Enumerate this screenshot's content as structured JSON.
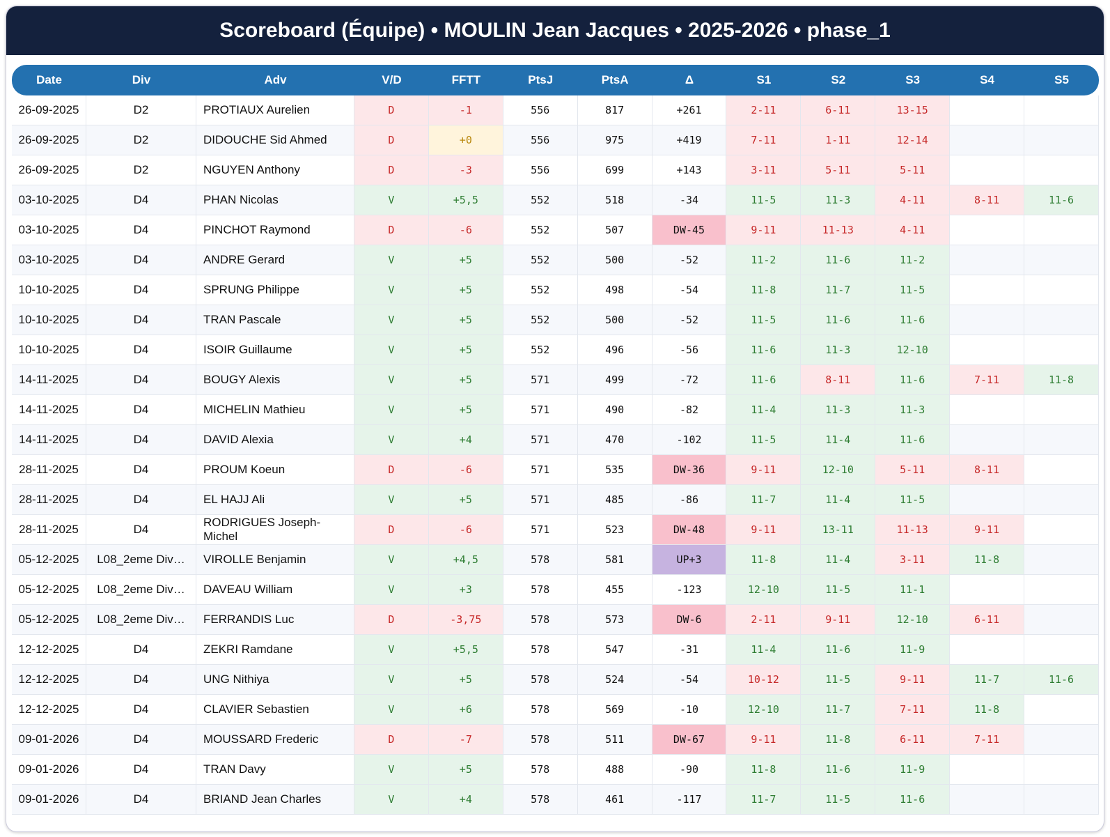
{
  "header": {
    "title": "Scoreboard (Équipe) • MOULIN Jean Jacques • 2025-2026 • phase_1"
  },
  "table": {
    "columns": [
      "Date",
      "Div",
      "Adv",
      "V/D",
      "FFTT",
      "PtsJ",
      "PtsA",
      "Δ",
      "S1",
      "S2",
      "S3",
      "S4",
      "S5"
    ],
    "rows": [
      [
        "26-09-2025",
        "D2",
        "PROTIAUX Aurelien",
        "D",
        "-1",
        556,
        817,
        "+261",
        "2-11",
        "6-11",
        "13-15",
        null,
        null
      ],
      [
        "26-09-2025",
        "D2",
        "DIDOUCHE Sid Ahmed",
        "D",
        "+0",
        556,
        975,
        "+419",
        "7-11",
        "1-11",
        "12-14",
        null,
        null
      ],
      [
        "26-09-2025",
        "D2",
        "NGUYEN Anthony",
        "D",
        "-3",
        556,
        699,
        "+143",
        "3-11",
        "5-11",
        "5-11",
        null,
        null
      ],
      [
        "03-10-2025",
        "D4",
        "PHAN Nicolas",
        "V",
        "+5,5",
        552,
        518,
        "-34",
        "11-5",
        "11-3",
        "4-11",
        "8-11",
        "11-6"
      ],
      [
        "03-10-2025",
        "D4",
        "PINCHOT Raymond",
        "D",
        "-6",
        552,
        507,
        "DW-45",
        "9-11",
        "11-13",
        "4-11",
        null,
        null
      ],
      [
        "03-10-2025",
        "D4",
        "ANDRE Gerard",
        "V",
        "+5",
        552,
        500,
        "-52",
        "11-2",
        "11-6",
        "11-2",
        null,
        null
      ],
      [
        "10-10-2025",
        "D4",
        "SPRUNG Philippe",
        "V",
        "+5",
        552,
        498,
        "-54",
        "11-8",
        "11-7",
        "11-5",
        null,
        null
      ],
      [
        "10-10-2025",
        "D4",
        "TRAN Pascale",
        "V",
        "+5",
        552,
        500,
        "-52",
        "11-5",
        "11-6",
        "11-6",
        null,
        null
      ],
      [
        "10-10-2025",
        "D4",
        "ISOIR Guillaume",
        "V",
        "+5",
        552,
        496,
        "-56",
        "11-6",
        "11-3",
        "12-10",
        null,
        null
      ],
      [
        "14-11-2025",
        "D4",
        "BOUGY Alexis",
        "V",
        "+5",
        571,
        499,
        "-72",
        "11-6",
        "8-11",
        "11-6",
        "7-11",
        "11-8"
      ],
      [
        "14-11-2025",
        "D4",
        "MICHELIN Mathieu",
        "V",
        "+5",
        571,
        490,
        "-82",
        "11-4",
        "11-3",
        "11-3",
        null,
        null
      ],
      [
        "14-11-2025",
        "D4",
        "DAVID Alexia",
        "V",
        "+4",
        571,
        470,
        "-102",
        "11-5",
        "11-4",
        "11-6",
        null,
        null
      ],
      [
        "28-11-2025",
        "D4",
        "PROUM Koeun",
        "D",
        "-6",
        571,
        535,
        "DW-36",
        "9-11",
        "12-10",
        "5-11",
        "8-11",
        null
      ],
      [
        "28-11-2025",
        "D4",
        "EL HAJJ Ali",
        "V",
        "+5",
        571,
        485,
        "-86",
        "11-7",
        "11-4",
        "11-5",
        null,
        null
      ],
      [
        "28-11-2025",
        "D4",
        "RODRIGUES Joseph-Michel",
        "D",
        "-6",
        571,
        523,
        "DW-48",
        "9-11",
        "13-11",
        "11-13",
        "9-11",
        null
      ],
      [
        "05-12-2025",
        "L08_2eme Div…",
        "VIROLLE Benjamin",
        "V",
        "+4,5",
        578,
        581,
        "UP+3",
        "11-8",
        "11-4",
        "3-11",
        "11-8",
        null
      ],
      [
        "05-12-2025",
        "L08_2eme Div…",
        "DAVEAU William",
        "V",
        "+3",
        578,
        455,
        "-123",
        "12-10",
        "11-5",
        "11-1",
        null,
        null
      ],
      [
        "05-12-2025",
        "L08_2eme Div…",
        "FERRANDIS Luc",
        "D",
        "-3,75",
        578,
        573,
        "DW-6",
        "2-11",
        "9-11",
        "12-10",
        "6-11",
        null
      ],
      [
        "12-12-2025",
        "D4",
        "ZEKRI Ramdane",
        "V",
        "+5,5",
        578,
        547,
        "-31",
        "11-4",
        "11-6",
        "11-9",
        null,
        null
      ],
      [
        "12-12-2025",
        "D4",
        "UNG Nithiya",
        "V",
        "+5",
        578,
        524,
        "-54",
        "10-12",
        "11-5",
        "9-11",
        "11-7",
        "11-6"
      ],
      [
        "12-12-2025",
        "D4",
        "CLAVIER Sebastien",
        "V",
        "+6",
        578,
        569,
        "-10",
        "12-10",
        "11-7",
        "7-11",
        "11-8",
        null
      ],
      [
        "09-01-2026",
        "D4",
        "MOUSSARD Frederic",
        "D",
        "-7",
        578,
        511,
        "DW-67",
        "9-11",
        "11-8",
        "6-11",
        "7-11",
        null
      ],
      [
        "09-01-2026",
        "D4",
        "TRAN Davy",
        "V",
        "+5",
        578,
        488,
        "-90",
        "11-8",
        "11-6",
        "11-9",
        null,
        null
      ],
      [
        "09-01-2026",
        "D4",
        "BRIAND Jean Charles",
        "V",
        "+4",
        578,
        461,
        "-117",
        "11-7",
        "11-5",
        "11-6",
        null,
        null
      ]
    ]
  }
}
